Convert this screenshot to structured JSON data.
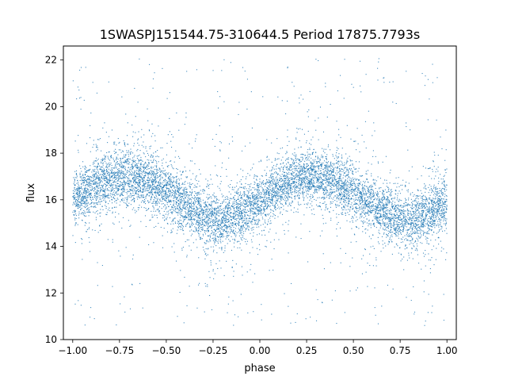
{
  "chart_data": {
    "type": "scatter",
    "title": "1SWASPJ151544.75-310644.5 Period 17875.7793s",
    "xlabel": "phase",
    "ylabel": "flux",
    "xlim": [
      -1.05,
      1.05
    ],
    "ylim": [
      10.0,
      22.6
    ],
    "xticks": [
      -1.0,
      -0.75,
      -0.5,
      -0.25,
      0.0,
      0.25,
      0.5,
      0.75,
      1.0
    ],
    "xtick_labels": [
      "−1.00",
      "−0.75",
      "−0.50",
      "−0.25",
      "0.00",
      "0.25",
      "0.50",
      "0.75",
      "1.00"
    ],
    "yticks": [
      10,
      12,
      14,
      16,
      18,
      20,
      22
    ],
    "ytick_labels": [
      "10",
      "12",
      "14",
      "16",
      "18",
      "20",
      "22"
    ],
    "grid": false,
    "marker_color": "#1f77b4",
    "series": [
      {
        "x": [
          -1.0,
          -0.9,
          -0.8,
          -0.7,
          -0.6,
          -0.5,
          -0.4,
          -0.3,
          -0.2,
          -0.1,
          0.0,
          0.1,
          0.2,
          0.3,
          0.4,
          0.5,
          0.6,
          0.7,
          0.8,
          0.9,
          1.0
        ],
        "y": [
          16.0,
          16.5,
          16.9,
          17.0,
          16.8,
          16.3,
          15.8,
          15.3,
          15.1,
          15.4,
          15.9,
          16.5,
          16.9,
          17.0,
          16.8,
          16.3,
          15.8,
          15.3,
          15.1,
          15.4,
          15.9
        ]
      }
    ]
  }
}
